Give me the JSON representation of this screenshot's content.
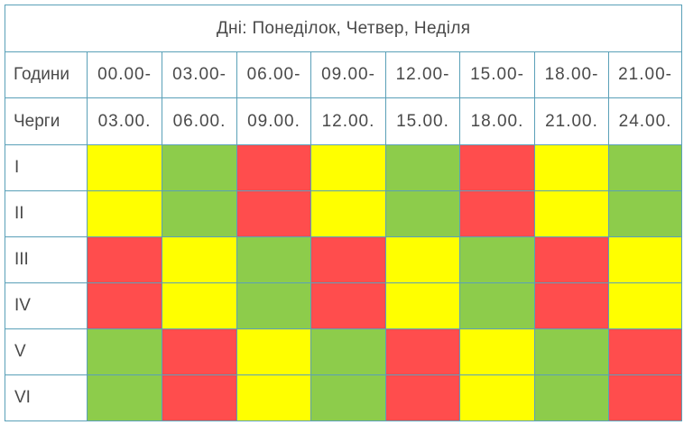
{
  "title": "Дні: Понеділок, Четвер, Неділя",
  "hours_label": "Години",
  "queues_label": "Черги",
  "time_start": [
    "00.00-",
    "03.00-",
    "06.00-",
    "09.00-",
    "12.00-",
    "15.00-",
    "18.00-",
    "21.00-"
  ],
  "time_end": [
    "03.00.",
    "06.00.",
    "09.00.",
    "12.00.",
    "15.00.",
    "18.00.",
    "21.00.",
    "24.00."
  ],
  "colors": {
    "green": "#8dcc4b",
    "yellow": "#ffff00",
    "red": "#ff4d4d",
    "border": "#5aa0b8"
  },
  "queues": [
    {
      "label": "I",
      "cells": [
        "yellow",
        "green",
        "red",
        "yellow",
        "green",
        "red",
        "yellow",
        "green"
      ]
    },
    {
      "label": "II",
      "cells": [
        "yellow",
        "green",
        "red",
        "yellow",
        "green",
        "red",
        "yellow",
        "green"
      ]
    },
    {
      "label": "III",
      "cells": [
        "red",
        "yellow",
        "green",
        "red",
        "yellow",
        "green",
        "red",
        "yellow"
      ]
    },
    {
      "label": "IV",
      "cells": [
        "red",
        "yellow",
        "green",
        "red",
        "yellow",
        "green",
        "red",
        "yellow"
      ]
    },
    {
      "label": "V",
      "cells": [
        "green",
        "red",
        "yellow",
        "green",
        "red",
        "yellow",
        "green",
        "red"
      ]
    },
    {
      "label": "VI",
      "cells": [
        "green",
        "red",
        "yellow",
        "green",
        "red",
        "yellow",
        "green",
        "red"
      ]
    }
  ]
}
